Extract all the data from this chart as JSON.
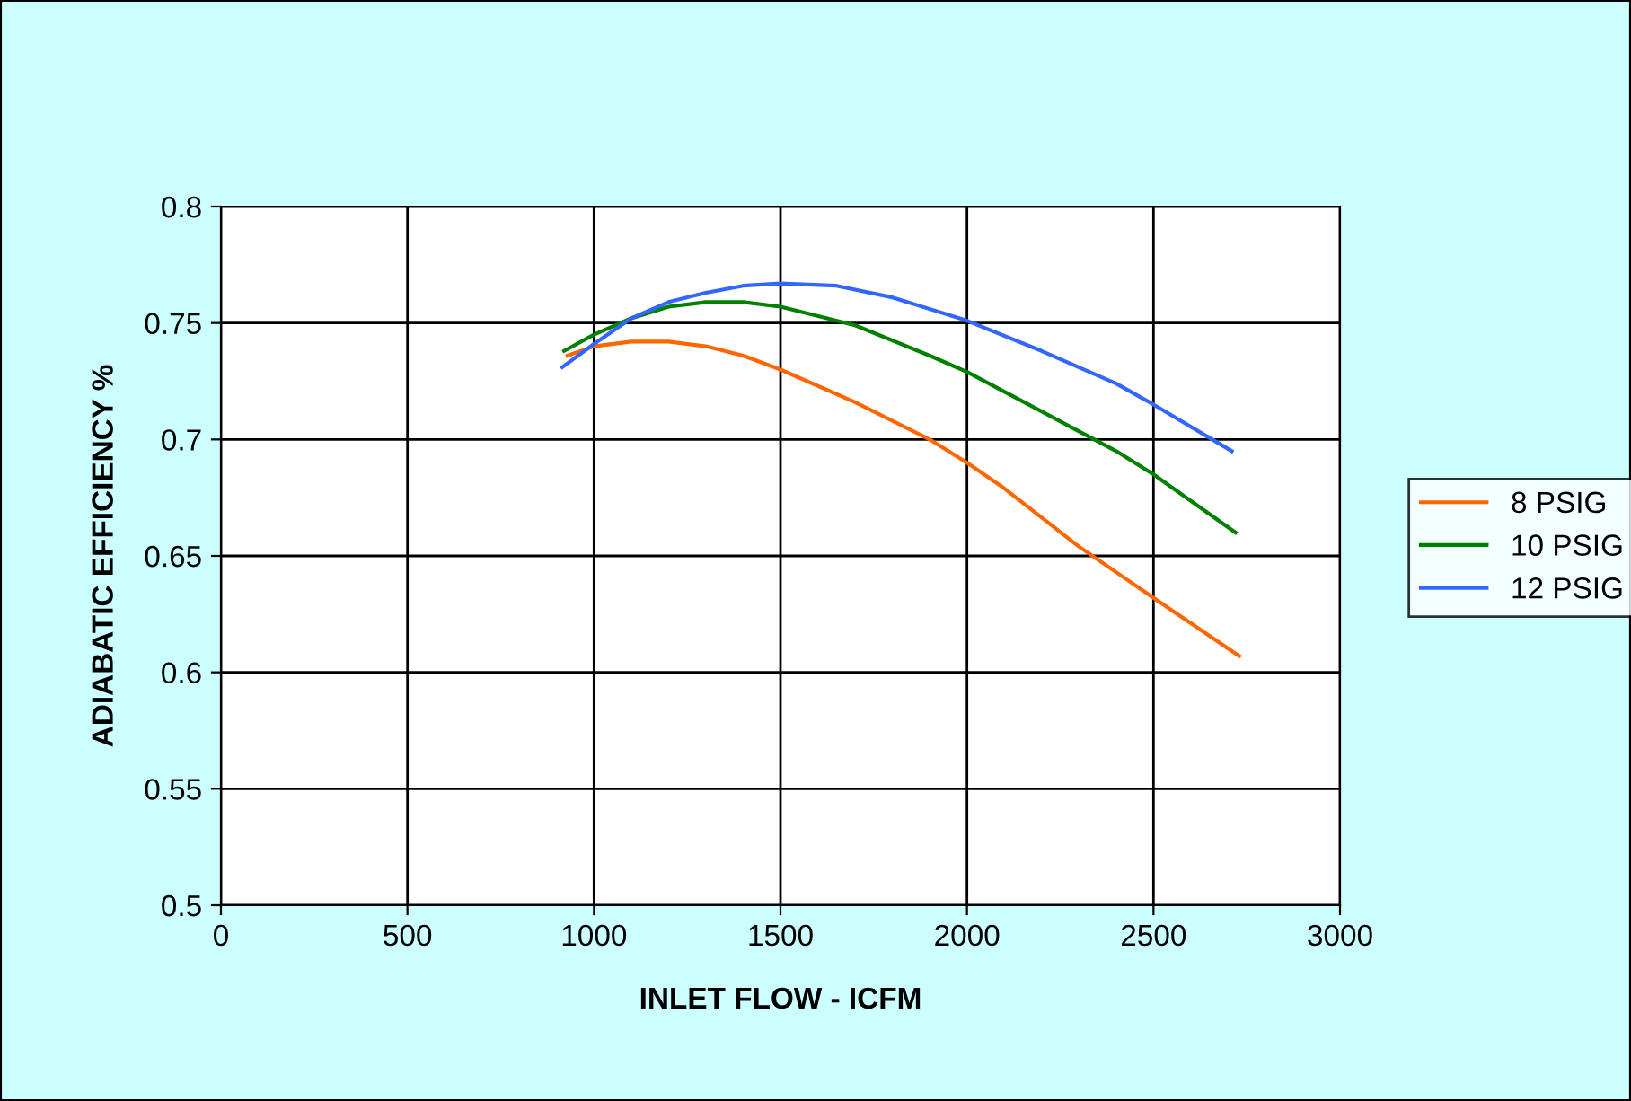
{
  "chart_data": {
    "type": "line",
    "xlabel": "INLET FLOW - ICFM",
    "ylabel": "ADIABATIC EFFICIENCY %",
    "xlim": [
      0,
      3000
    ],
    "xticks": [
      0,
      500,
      1000,
      1500,
      2000,
      2500,
      3000
    ],
    "ylim": [
      0.5,
      0.8
    ],
    "yticks": [
      0.5,
      0.55,
      0.6,
      0.65,
      0.7,
      0.75,
      0.8
    ],
    "grid": true,
    "legend": "right",
    "marker": "none",
    "line_style": "solid",
    "series": [
      {
        "name": "8 PSIG",
        "color": "#ff6600",
        "x": [
          929,
          1000,
          1100,
          1200,
          1300,
          1400,
          1500,
          1700,
          1900,
          2000,
          2100,
          2300,
          2500,
          2730
        ],
        "values": [
          0.736,
          0.74,
          0.742,
          0.742,
          0.74,
          0.736,
          0.73,
          0.716,
          0.7,
          0.69,
          0.679,
          0.654,
          0.632,
          0.607
        ]
      },
      {
        "name": "10 PSIG",
        "color": "#008000",
        "x": [
          920,
          1000,
          1100,
          1200,
          1300,
          1400,
          1500,
          1700,
          1900,
          2000,
          2200,
          2400,
          2500,
          2720
        ],
        "values": [
          0.738,
          0.745,
          0.752,
          0.757,
          0.759,
          0.759,
          0.757,
          0.749,
          0.736,
          0.729,
          0.712,
          0.695,
          0.685,
          0.66
        ]
      },
      {
        "name": "12 PSIG",
        "color": "#3366ff",
        "x": [
          915,
          1000,
          1100,
          1200,
          1300,
          1400,
          1500,
          1650,
          1800,
          2000,
          2200,
          2400,
          2500,
          2710
        ],
        "values": [
          0.731,
          0.741,
          0.752,
          0.759,
          0.763,
          0.766,
          0.767,
          0.766,
          0.761,
          0.751,
          0.738,
          0.724,
          0.715,
          0.695
        ]
      }
    ]
  }
}
